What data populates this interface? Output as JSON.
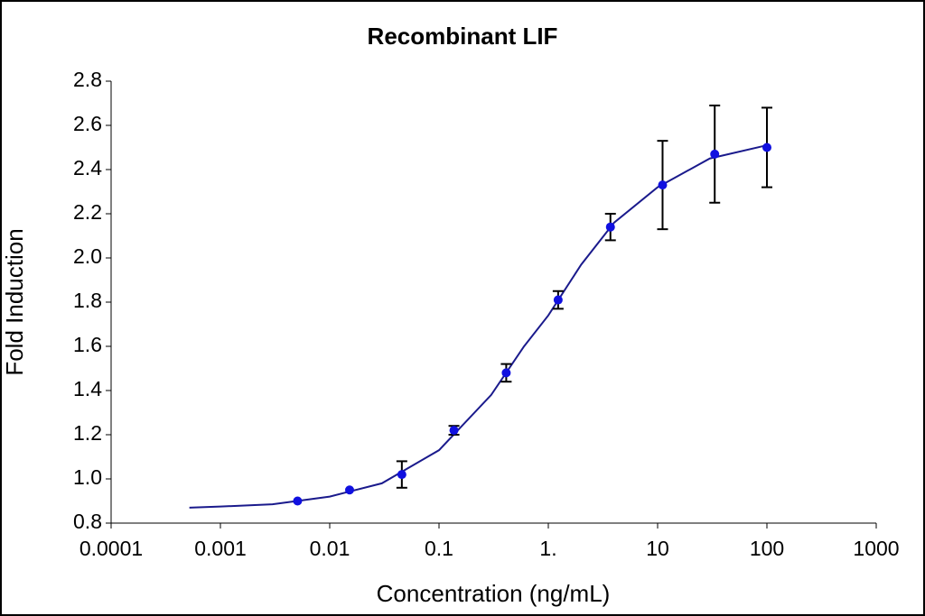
{
  "chart_data": {
    "type": "scatter",
    "title": "Recombinant LIF",
    "x_label": "Concentration (ng/mL)",
    "y_label": "Fold Induction",
    "xscale": "log",
    "xlim": [
      0.0001,
      1000
    ],
    "xticks": [
      0.0001,
      0.001,
      0.01,
      0.1,
      {
        "value": 1,
        "label": "1."
      },
      10,
      100,
      1000
    ],
    "ylim": [
      0.8,
      2.8
    ],
    "yticks": [
      0.8,
      {
        "value": 1.0,
        "label": "1.0"
      },
      1.2,
      1.4,
      1.6,
      1.8,
      {
        "value": 2.0,
        "label": "2.0"
      },
      2.2,
      2.4,
      2.6,
      2.8
    ],
    "series": [
      {
        "color": "#1010e0",
        "x": [
          0.00508,
          0.0152,
          0.0457,
          0.137,
          0.412,
          1.23,
          3.7,
          11.1,
          33.3,
          100
        ],
        "values": [
          0.9,
          0.95,
          1.02,
          1.22,
          1.48,
          1.81,
          2.14,
          2.33,
          2.47,
          2.5
        ],
        "errors": [
          0,
          0,
          0.06,
          0.02,
          0.04,
          0.04,
          0.06,
          0.2,
          0.22,
          0.18
        ]
      }
    ],
    "error_color": "#000000",
    "curve": {
      "color": "#1a1a8c",
      "x": [
        0.00052,
        0.001,
        0.003,
        0.01,
        0.03,
        0.1,
        0.3,
        0.6,
        1,
        2,
        4,
        10,
        30,
        100
      ],
      "values": [
        0.87,
        0.875,
        0.885,
        0.92,
        0.98,
        1.13,
        1.38,
        1.6,
        1.74,
        1.97,
        2.16,
        2.32,
        2.45,
        2.51
      ]
    }
  }
}
